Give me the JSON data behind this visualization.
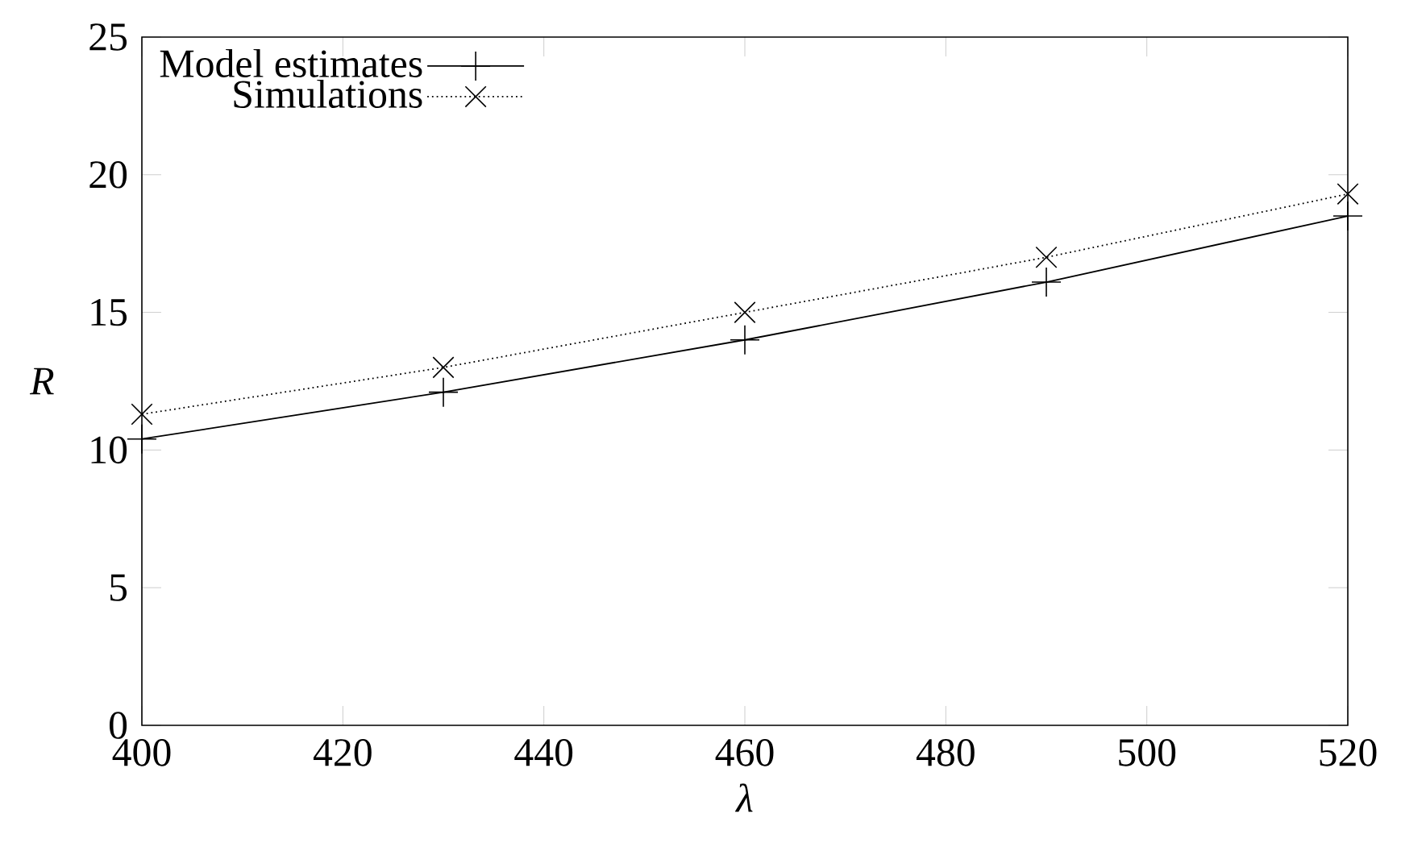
{
  "chart_data": {
    "type": "line",
    "xlabel": "λ",
    "ylabel": "R",
    "x": [
      400,
      430,
      460,
      490,
      520
    ],
    "series": [
      {
        "name": "Model estimates",
        "color": "#000000",
        "values": [
          10.4,
          12.1,
          14.0,
          16.1,
          18.5
        ],
        "marker": "plus",
        "line_style": "solid"
      },
      {
        "name": "Simulations",
        "color": "#000000",
        "values": [
          11.3,
          13.0,
          15.0,
          17.0,
          19.3
        ],
        "marker": "cross",
        "line_style": "dotted"
      }
    ],
    "xlim": [
      400,
      520
    ],
    "xticks": [
      400,
      420,
      440,
      460,
      480,
      500,
      520
    ],
    "ylim": [
      0,
      25
    ],
    "yticks": [
      0,
      5,
      10,
      15,
      20,
      25
    ],
    "grid": false,
    "legend": "top left"
  }
}
